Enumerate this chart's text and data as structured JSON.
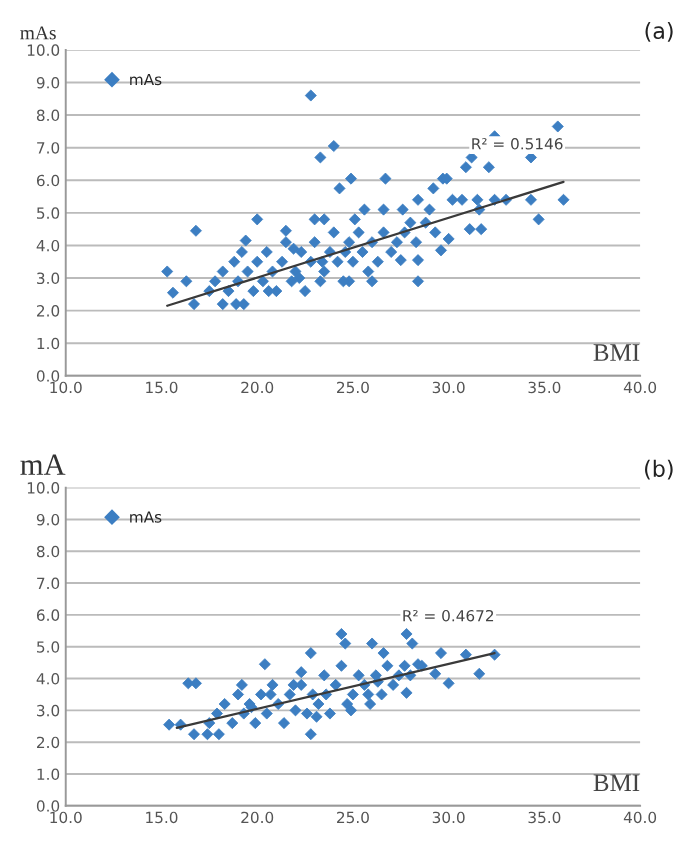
{
  "chart_data": [
    {
      "type": "scatter",
      "ylabel": "mAs",
      "xlabel": "BMI",
      "annotations": [
        "(a)",
        "R² = 0.5146"
      ],
      "xlim": [
        10,
        40
      ],
      "ylim": [
        0,
        10
      ],
      "xticks": [
        {
          "value": 10,
          "label": "10.0"
        },
        {
          "value": 15,
          "label": "15.0"
        },
        {
          "value": 20,
          "label": "20.0"
        },
        {
          "value": 25,
          "label": "25.0"
        },
        {
          "value": 30,
          "label": "30.0"
        },
        {
          "value": 35,
          "label": "35.0"
        },
        {
          "value": 40,
          "label": "40.0"
        }
      ],
      "yticks": [
        {
          "value": 0,
          "label": "0.0"
        },
        {
          "value": 1,
          "label": "1.0"
        },
        {
          "value": 2,
          "label": "2.0"
        },
        {
          "value": 3,
          "label": "3.0"
        },
        {
          "value": 4,
          "label": "4.0"
        },
        {
          "value": 5,
          "label": "5.0"
        },
        {
          "value": 6,
          "label": "6.0"
        },
        {
          "value": 7,
          "label": "7.0"
        },
        {
          "value": 8,
          "label": "8.0"
        },
        {
          "value": 9,
          "label": "9.0"
        },
        {
          "value": 10,
          "label": "10.0"
        }
      ],
      "grid": "y",
      "legend": "top left",
      "marker": "diamond",
      "series": [
        {
          "name": "mAs",
          "color": "#3c7ec2",
          "x": [
            22.8,
            24,
            23.3,
            24.3,
            24.9,
            26.7,
            29.7,
            29.9,
            30.9,
            31.2,
            32.1,
            32.4,
            34.3,
            35.7,
            36,
            34.7,
            34.3,
            33,
            32.4,
            31.7,
            31.5,
            31.1,
            30.7,
            30.2,
            30,
            29.6,
            28.4,
            28.4,
            27.5,
            26,
            24.8,
            16.8,
            15.3,
            15.6,
            16.3,
            16.7,
            18.2,
            18.9,
            19.3,
            20,
            19.4,
            21.5,
            23,
            23.5,
            25.1,
            25.6,
            26.6,
            27.6,
            28.4,
            29.2,
            29,
            31.6,
            17.5,
            17.8,
            18.2,
            18.5,
            18.8,
            19,
            19.5,
            19.8,
            20,
            20.3,
            20.5,
            20.8,
            21,
            21.3,
            21.5,
            21.8,
            22,
            22.3,
            22.5,
            22.8,
            23,
            23.3,
            23.5,
            23.8,
            24,
            24.2,
            24.5,
            24.8,
            25,
            25.3,
            25.5,
            25.8,
            26,
            26.3,
            26.6,
            27,
            27.3,
            27.7,
            28,
            28.3,
            28.8,
            29.3,
            19.2,
            20.6,
            21.9,
            23.4,
            24.6,
            22.2
          ],
          "values": [
            8.6,
            7.05,
            6.7,
            5.75,
            6.05,
            6.05,
            6.05,
            6.05,
            6.4,
            6.7,
            6.4,
            7.35,
            6.7,
            7.65,
            5.4,
            4.8,
            5.4,
            5.4,
            5.4,
            4.5,
            5.4,
            4.5,
            5.4,
            5.4,
            4.2,
            3.85,
            2.9,
            3.55,
            3.55,
            2.9,
            2.9,
            4.45,
            3.2,
            2.55,
            2.9,
            2.2,
            2.2,
            2.2,
            2.2,
            4.8,
            4.15,
            4.45,
            4.8,
            4.8,
            4.8,
            5.1,
            5.1,
            5.1,
            5.4,
            5.75,
            5.1,
            5.1,
            2.6,
            2.9,
            3.2,
            2.6,
            3.5,
            2.9,
            3.2,
            2.6,
            3.5,
            2.9,
            3.8,
            3.2,
            2.6,
            3.5,
            4.1,
            2.9,
            3.2,
            3.8,
            2.6,
            3.5,
            4.1,
            2.9,
            3.2,
            3.8,
            4.4,
            3.5,
            2.9,
            4.1,
            3.5,
            4.4,
            3.8,
            3.2,
            4.1,
            3.5,
            4.4,
            3.8,
            4.1,
            4.4,
            4.7,
            4.1,
            4.7,
            4.4,
            3.8,
            2.6,
            3.9,
            3.5,
            3.8,
            3.0
          ]
        },
        {
          "type": "line",
          "marker": "none",
          "color": "#3a3a3a",
          "x": [
            15.3,
            36
          ],
          "values": [
            2.15,
            5.95
          ]
        }
      ]
    },
    {
      "type": "scatter",
      "ylabel": "mA",
      "xlabel": "BMI",
      "annotations": [
        "(b)",
        "R² = 0.4672"
      ],
      "xlim": [
        10,
        40
      ],
      "ylim": [
        0,
        10
      ],
      "xticks": [
        {
          "value": 10,
          "label": "10.0"
        },
        {
          "value": 15,
          "label": "15.0"
        },
        {
          "value": 20,
          "label": "20.0"
        },
        {
          "value": 25,
          "label": "25.0"
        },
        {
          "value": 30,
          "label": "30.0"
        },
        {
          "value": 35,
          "label": "35.0"
        },
        {
          "value": 40,
          "label": "40.0"
        }
      ],
      "yticks": [
        {
          "value": 0,
          "label": "0.0"
        },
        {
          "value": 1,
          "label": "1.0"
        },
        {
          "value": 2,
          "label": "2.0"
        },
        {
          "value": 3,
          "label": "3.0"
        },
        {
          "value": 4,
          "label": "4.0"
        },
        {
          "value": 5,
          "label": "5.0"
        },
        {
          "value": 6,
          "label": "6.0"
        },
        {
          "value": 7,
          "label": "7.0"
        },
        {
          "value": 8,
          "label": "8.0"
        },
        {
          "value": 9,
          "label": "9.0"
        },
        {
          "value": 10,
          "label": "10.0"
        }
      ],
      "grid": "y",
      "legend": "top left",
      "marker": "diamond",
      "series": [
        {
          "name": "mAs",
          "color": "#3c7ec2",
          "x": [
            16.4,
            16.8,
            15.4,
            16,
            16.7,
            17.4,
            18,
            22.8,
            20.4,
            22.8,
            24.4,
            24.6,
            26,
            27.8,
            28.1,
            29.6,
            30.9,
            32.4,
            31.6,
            30,
            29.3,
            27.8,
            28.4,
            26.6,
            17.5,
            17.9,
            18.3,
            18.7,
            19,
            19.3,
            19.6,
            19.9,
            20.2,
            20.5,
            20.8,
            21.1,
            21.4,
            21.7,
            22,
            22.3,
            22.6,
            22.9,
            23.2,
            23.5,
            23.8,
            24.1,
            24.4,
            24.7,
            25,
            25.3,
            25.6,
            25.9,
            26.2,
            26.5,
            26.8,
            27.1,
            27.4,
            27.7,
            28,
            28.6,
            19.2,
            20.7,
            21.9,
            23.6,
            24.9,
            25.8,
            22.3,
            19.7,
            23.1,
            26.3
          ],
          "values": [
            3.85,
            3.85,
            2.55,
            2.55,
            2.25,
            2.25,
            2.25,
            2.25,
            4.45,
            4.8,
            5.4,
            5.1,
            5.1,
            5.4,
            5.1,
            4.8,
            4.75,
            4.75,
            4.15,
            3.85,
            4.15,
            3.55,
            4.45,
            4.8,
            2.6,
            2.9,
            3.2,
            2.6,
            3.5,
            2.9,
            3.2,
            2.6,
            3.5,
            2.9,
            3.8,
            3.2,
            2.6,
            3.5,
            3.0,
            3.8,
            2.9,
            3.5,
            3.2,
            4.1,
            2.9,
            3.8,
            4.4,
            3.2,
            3.5,
            4.1,
            3.8,
            3.2,
            4.1,
            3.5,
            4.4,
            3.8,
            4.1,
            4.4,
            4.1,
            4.4,
            3.8,
            3.5,
            3.8,
            3.5,
            3.0,
            3.5,
            4.2,
            3.1,
            2.8,
            3.9
          ]
        },
        {
          "type": "line",
          "marker": "none",
          "color": "#3a3a3a",
          "x": [
            15.8,
            32.4
          ],
          "values": [
            2.45,
            4.8
          ]
        }
      ]
    }
  ]
}
